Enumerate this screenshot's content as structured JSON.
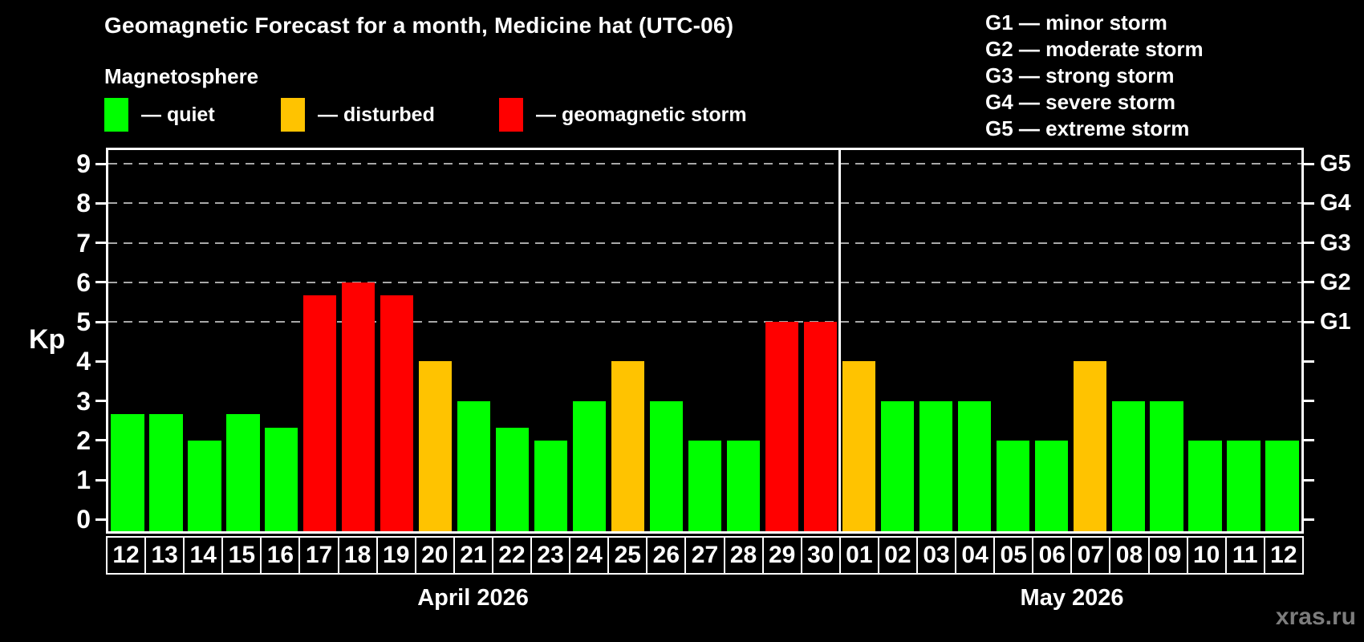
{
  "title": "Geomagnetic Forecast for a month, Medicine hat (UTC-06)",
  "subtitle": "Magnetosphere",
  "legend": {
    "items": [
      {
        "name": "quiet",
        "label": "— quiet",
        "color": "#00ff00",
        "x": 130
      },
      {
        "name": "disturbed",
        "label": "— disturbed",
        "color": "#ffc300",
        "x": 350
      },
      {
        "name": "storm",
        "label": "— geomagnetic storm",
        "color": "#ff0000",
        "x": 622
      }
    ]
  },
  "g_legend": [
    "G1 — minor storm",
    "G2 — moderate storm",
    "G3 — strong storm",
    "G4 — severe storm",
    "G5 — extreme storm"
  ],
  "watermark": "xras.ru",
  "chart_data": {
    "type": "bar",
    "title": "Geomagnetic Forecast for a month, Medicine hat (UTC-06)",
    "ylabel": "Kp",
    "ylim": [
      -0.3,
      9.35
    ],
    "yticks": [
      0,
      1,
      2,
      3,
      4,
      5,
      6,
      7,
      8,
      9
    ],
    "gridlines": [
      5,
      6,
      7,
      8,
      9
    ],
    "grid_style": "dashed-gray-horizontal",
    "legend_position": "top-left",
    "right_axis_ticks": [
      0,
      1,
      2,
      3,
      4,
      5,
      6,
      7,
      8,
      9
    ],
    "right_axis_labels": [
      {
        "label": "G5",
        "value": 9
      },
      {
        "label": "G4",
        "value": 8
      },
      {
        "label": "G3",
        "value": 7
      },
      {
        "label": "G2",
        "value": 6
      },
      {
        "label": "G1",
        "value": 5
      }
    ],
    "categories": [
      "12",
      "13",
      "14",
      "15",
      "16",
      "17",
      "18",
      "19",
      "20",
      "21",
      "22",
      "23",
      "24",
      "25",
      "26",
      "27",
      "28",
      "29",
      "30",
      "01",
      "02",
      "03",
      "04",
      "05",
      "06",
      "07",
      "08",
      "09",
      "10",
      "11",
      "12"
    ],
    "values": [
      2.67,
      2.67,
      2,
      2.67,
      2.33,
      5.67,
      6,
      5.67,
      4,
      3,
      2.33,
      2,
      3,
      4,
      3,
      2,
      2,
      5,
      5,
      4,
      3,
      3,
      3,
      2,
      2,
      4,
      3,
      3,
      2,
      2,
      2
    ],
    "statuses": [
      "quiet",
      "quiet",
      "quiet",
      "quiet",
      "quiet",
      "storm",
      "storm",
      "storm",
      "disturbed",
      "quiet",
      "quiet",
      "quiet",
      "quiet",
      "disturbed",
      "quiet",
      "quiet",
      "quiet",
      "storm",
      "storm",
      "disturbed",
      "quiet",
      "quiet",
      "quiet",
      "quiet",
      "quiet",
      "disturbed",
      "quiet",
      "quiet",
      "quiet",
      "quiet",
      "quiet"
    ],
    "status_colors": {
      "quiet": "#00ff00",
      "disturbed": "#ffc300",
      "storm": "#ff0000"
    },
    "months": [
      {
        "label": "April 2026",
        "n_days": 19
      },
      {
        "label": "May 2026",
        "n_days": 12
      }
    ]
  }
}
